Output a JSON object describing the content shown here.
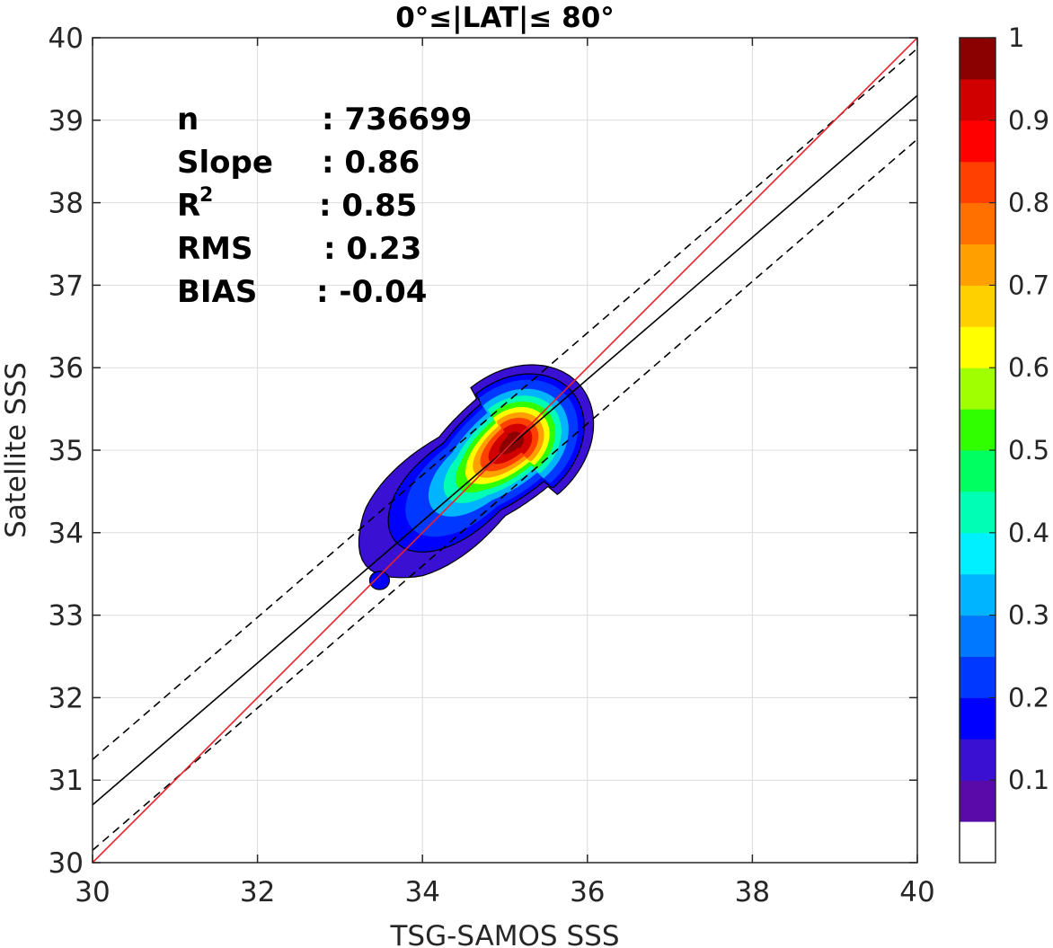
{
  "chart_data": {
    "type": "contour",
    "title": "0°≤|LAT|≤ 80°",
    "xlabel": "TSG-SAMOS SSS",
    "ylabel": "Satellite SSS",
    "xlim": [
      30,
      40
    ],
    "ylim": [
      30,
      40
    ],
    "xticks": [
      "30",
      "32",
      "34",
      "36",
      "38",
      "40"
    ],
    "yticks": [
      "30",
      "31",
      "32",
      "33",
      "34",
      "35",
      "36",
      "37",
      "38",
      "39",
      "40"
    ],
    "grid": true,
    "stats": [
      {
        "label": "n",
        "value": ": 736699"
      },
      {
        "label": "Slope",
        "value": ": 0.86"
      },
      {
        "label": "R",
        "sup": "2",
        "value": ": 0.85"
      },
      {
        "label": "RMS",
        "value": ": 0.23"
      },
      {
        "label": "BIAS",
        "value": ": -0.04"
      }
    ],
    "lines": {
      "one_to_one": {
        "color": "#e8202a",
        "x": [
          30,
          40
        ],
        "y": [
          30,
          40
        ]
      },
      "fit": {
        "color": "#000000",
        "style": "solid",
        "x": [
          30,
          40
        ],
        "y": [
          30.7,
          39.3
        ]
      },
      "fit_upper": {
        "color": "#000000",
        "style": "dashed",
        "x": [
          30,
          40
        ],
        "y": [
          31.25,
          39.87
        ]
      },
      "fit_lower": {
        "color": "#000000",
        "style": "dashed",
        "x": [
          30,
          40
        ],
        "y": [
          30.15,
          38.77
        ]
      }
    },
    "density": {
      "center": [
        35.05,
        35.1
      ],
      "levels": [
        0.05,
        0.1,
        0.2,
        0.3,
        0.4,
        0.5,
        0.6,
        0.7,
        0.8,
        0.9
      ],
      "blobs": [
        {
          "name": "main",
          "peak": [
            35.1,
            35.1
          ],
          "color_level": 0.05
        },
        {
          "name": "satellite",
          "center": [
            33.48,
            33.42
          ],
          "radius": 0.12,
          "color_level": 0.1
        }
      ]
    },
    "colorbar": {
      "ticks": [
        "0.1",
        "0.2",
        "0.3",
        "0.4",
        "0.5",
        "0.6",
        "0.7",
        "0.8",
        "0.9",
        "1"
      ],
      "tick_values": [
        0.1,
        0.2,
        0.3,
        0.4,
        0.5,
        0.6,
        0.7,
        0.8,
        0.9,
        1.0
      ],
      "colors": [
        "#ffffff",
        "#5a0aa8",
        "#3a10d2",
        "#0000ff",
        "#0038ff",
        "#0078ff",
        "#00b4ff",
        "#00f0ff",
        "#00ffb4",
        "#00ff60",
        "#30ff00",
        "#a0ff00",
        "#ffff00",
        "#ffd000",
        "#ffa000",
        "#ff7000",
        "#ff4000",
        "#ff0000",
        "#d00000",
        "#8b0000"
      ]
    }
  }
}
